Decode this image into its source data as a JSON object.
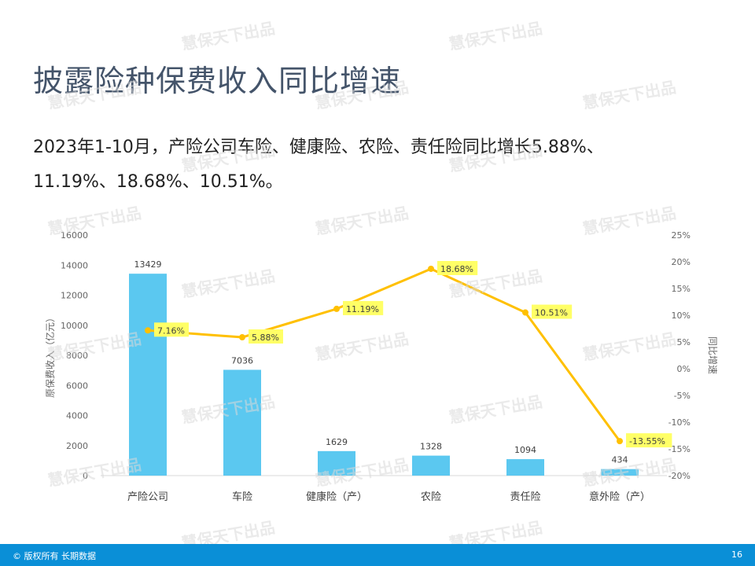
{
  "slide": {
    "title": "披露险种保费收入同比增速",
    "body_line1": "2023年1-10月，产险公司车险、健康险、农险、责任险同比增长5.88%、",
    "body_line2": "11.19%、18.68%、10.51%。"
  },
  "watermark_text": "慧保天下出品",
  "footer": {
    "copyright": "© 版权所有 长期数据",
    "page_number": "16"
  },
  "colors": {
    "bar": "#5bc8f0",
    "line": "#ffc000",
    "label_highlight": "#ffff66",
    "axis_text": "#666666",
    "footer_bg": "#0a8fd7",
    "title": "#44546a"
  },
  "chart_data": {
    "type": "bar+line",
    "categories": [
      "产险公司",
      "车险",
      "健康险（产）",
      "农险",
      "责任险",
      "意外险（产）"
    ],
    "series": [
      {
        "type": "bar",
        "axis": "left",
        "values": [
          13429,
          7036,
          1629,
          1328,
          1094,
          434
        ],
        "labels": [
          "13429",
          "7036",
          "1629",
          "1328",
          "1094",
          "434"
        ]
      },
      {
        "type": "line",
        "axis": "right",
        "values": [
          7.16,
          5.88,
          11.19,
          18.68,
          10.51,
          -13.55
        ],
        "labels": [
          "7.16%",
          "5.88%",
          "11.19%",
          "18.68%",
          "10.51%",
          "-13.55%"
        ]
      }
    ],
    "ylabel": "原保费收入（亿元）",
    "y2label": "同比增速",
    "ylim": [
      0,
      16000
    ],
    "yticks": [
      0,
      2000,
      4000,
      6000,
      8000,
      10000,
      12000,
      14000,
      16000
    ],
    "y2lim": [
      -20,
      25
    ],
    "y2ticks": [
      "25%",
      "20%",
      "15%",
      "10%",
      "5%",
      "0%",
      "-5%",
      "-10%",
      "-15%",
      "-20%"
    ],
    "grid": false,
    "legend": "none"
  }
}
